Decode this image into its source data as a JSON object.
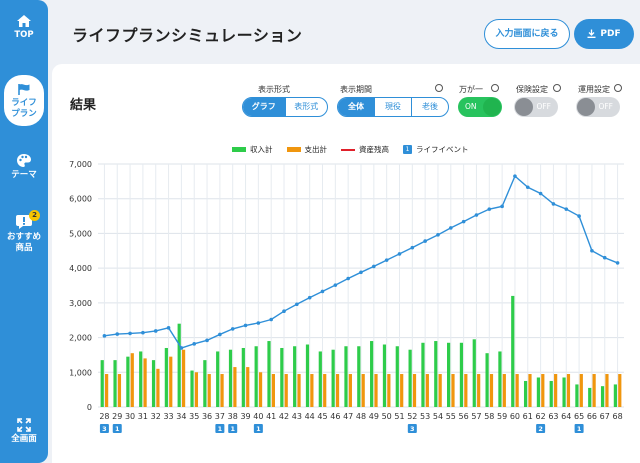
{
  "sidebar": {
    "items": [
      {
        "label": "TOP",
        "icon": "home-icon"
      },
      {
        "label": "ライフ\nプラン",
        "icon": "flag-icon",
        "active": true
      },
      {
        "label": "テーマ",
        "icon": "palette-icon"
      },
      {
        "label": "おすすめ\n商品",
        "icon": "alert-icon",
        "badge": "2"
      },
      {
        "label": "全画面",
        "icon": "fullscreen-icon"
      }
    ]
  },
  "header": {
    "title": "ライフプランシミュレーション",
    "back_button": "入力画面に戻る",
    "pdf_button": "PDF"
  },
  "result": {
    "title": "結果",
    "display_format": {
      "label": "表示形式",
      "options": [
        "グラフ",
        "表形式"
      ],
      "selected": "グラフ"
    },
    "display_period": {
      "label": "表示期間",
      "options": [
        "全体",
        "現役",
        "老後"
      ],
      "selected": "全体"
    },
    "emergency": {
      "label": "万が一",
      "state": "ON"
    },
    "insurance": {
      "label": "保険設定",
      "state": "OFF"
    },
    "investment": {
      "label": "運用設定",
      "state": "OFF"
    }
  },
  "legend": {
    "income": "収入計",
    "expense": "支出計",
    "assets": "資産残高",
    "event": "ライフイベント",
    "event_icon": "1"
  },
  "colors": {
    "accent": "#2f8fd8",
    "income": "#2ecc4a",
    "expense": "#f0960e",
    "assets_legend": "#e0202a",
    "assets_line": "#2f8fd8"
  },
  "chart_data": {
    "type": "bar",
    "x": [
      28,
      29,
      30,
      31,
      32,
      33,
      34,
      35,
      36,
      37,
      38,
      39,
      40,
      41,
      42,
      43,
      44,
      45,
      46,
      47,
      48,
      49,
      50,
      51,
      52,
      53,
      54,
      55,
      56,
      57,
      58,
      59,
      60,
      61,
      62,
      63,
      64,
      65,
      66,
      67,
      68
    ],
    "y_ticks": [
      "0",
      "1,000",
      "2,000",
      "3,000",
      "4,000",
      "5,000",
      "6,000",
      "7,000"
    ],
    "ylim": [
      0,
      7000
    ],
    "grid": true,
    "series": [
      {
        "name": "収入計",
        "type": "bar",
        "values": [
          1350,
          1350,
          1450,
          1600,
          1350,
          1700,
          2400,
          1050,
          1350,
          1600,
          1650,
          1700,
          1750,
          1900,
          1700,
          1750,
          1800,
          1600,
          1650,
          1750,
          1750,
          1900,
          1800,
          1750,
          1650,
          1850,
          1900,
          1850,
          1850,
          1950,
          1550,
          1600,
          3200,
          750,
          850,
          750,
          850,
          650,
          550,
          600,
          650
        ]
      },
      {
        "name": "支出計",
        "type": "bar",
        "values": [
          950,
          950,
          1550,
          1400,
          1100,
          1450,
          1650,
          1000,
          950,
          950,
          1150,
          1150,
          1000,
          950,
          950,
          950,
          950,
          950,
          950,
          950,
          950,
          950,
          950,
          950,
          950,
          950,
          950,
          950,
          950,
          950,
          950,
          950,
          950,
          950,
          950,
          950,
          950,
          950,
          950,
          950,
          950
        ]
      },
      {
        "name": "資産残高",
        "type": "line",
        "values": [
          2050,
          2100,
          2120,
          2140,
          2190,
          2280,
          1700,
          1820,
          1920,
          2090,
          2250,
          2350,
          2420,
          2520,
          2760,
          2960,
          3150,
          3330,
          3510,
          3700,
          3880,
          4050,
          4230,
          4410,
          4590,
          4780,
          4960,
          5160,
          5340,
          5530,
          5700,
          5780,
          6650,
          6330,
          6150,
          5850,
          5700,
          5500,
          4500,
          4300,
          4150
        ]
      }
    ],
    "events": [
      {
        "age": 28,
        "count": "3"
      },
      {
        "age": 29,
        "count": "1"
      },
      {
        "age": 37,
        "count": "1"
      },
      {
        "age": 38,
        "count": "1"
      },
      {
        "age": 40,
        "count": "1"
      },
      {
        "age": 52,
        "count": "3"
      },
      {
        "age": 62,
        "count": "2"
      },
      {
        "age": 65,
        "count": "1"
      }
    ]
  }
}
